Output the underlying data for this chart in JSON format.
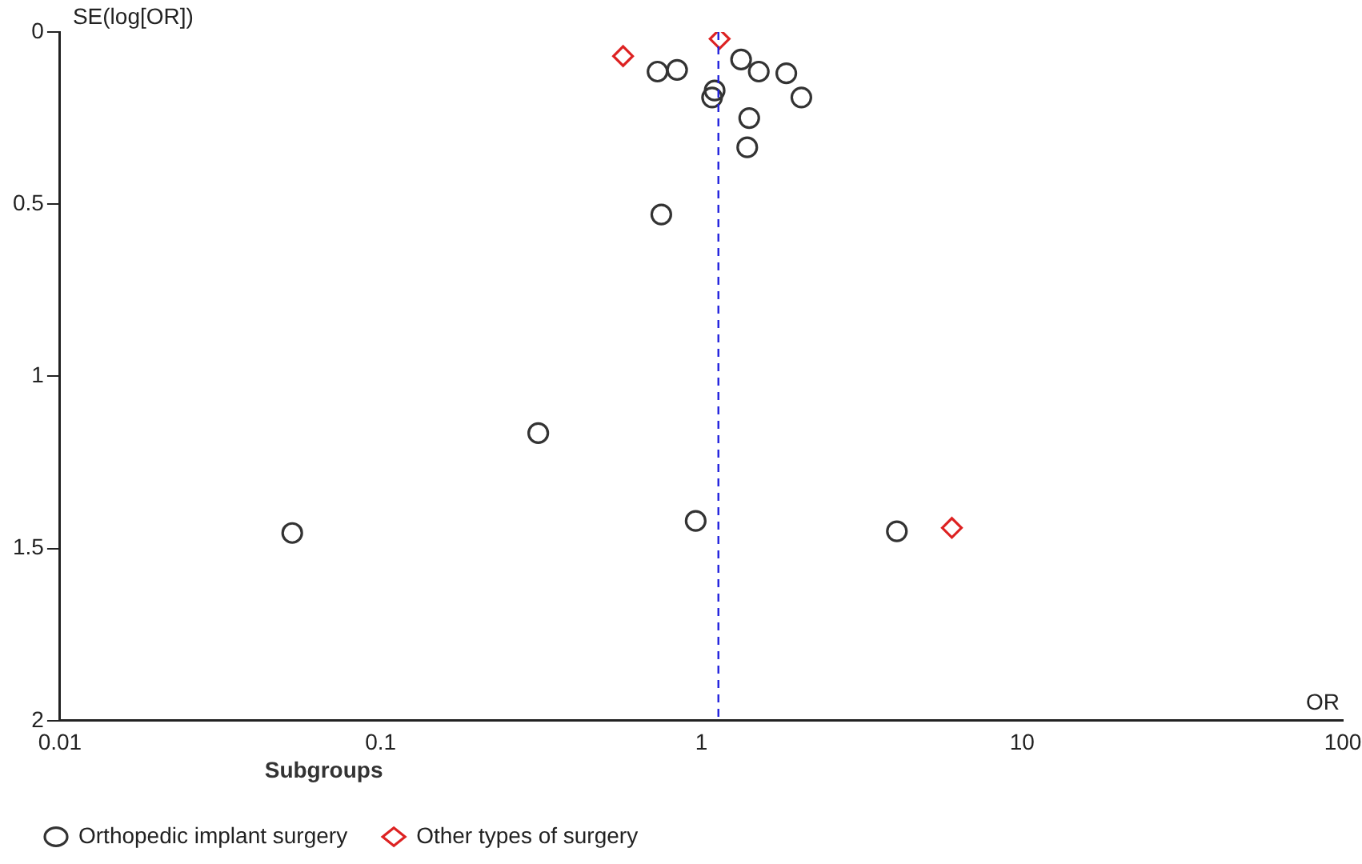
{
  "chart_data": {
    "type": "scatter",
    "xlabel": "OR",
    "ylabel": "SE(log[OR])",
    "legend_title": "Subgroups",
    "legend": "bottom",
    "log": "x",
    "grid": false,
    "xlim": [
      0.01,
      100
    ],
    "xticks": [
      0.01,
      0.1,
      1,
      10,
      100
    ],
    "ylim": [
      2,
      0
    ],
    "yticks": [
      0,
      0.5,
      1,
      1.5,
      2
    ],
    "series": [
      {
        "name": "Orthopedic implant surgery",
        "color": "#333333",
        "marker": "circle",
        "x": [
          0.73,
          0.84,
          1.33,
          1.51,
          1.84,
          2.05,
          1.1,
          1.08,
          1.41,
          1.39,
          0.75,
          0.31,
          0.053,
          0.96,
          4.07
        ],
        "values": [
          0.115,
          0.11,
          0.08,
          0.115,
          0.12,
          0.19,
          0.17,
          0.19,
          0.25,
          0.335,
          0.53,
          1.165,
          1.455,
          1.42,
          1.45
        ]
      },
      {
        "name": "Other types of surgery",
        "color": "#dd2222",
        "marker": "diamond",
        "x": [
          0.57,
          1.14,
          6.04
        ],
        "values": [
          0.07,
          0.02,
          1.44
        ]
      }
    ],
    "ref_lines": [
      {
        "axis": "x",
        "value": 1.13,
        "color": "#2222dd",
        "line_style": "dashed"
      }
    ]
  }
}
